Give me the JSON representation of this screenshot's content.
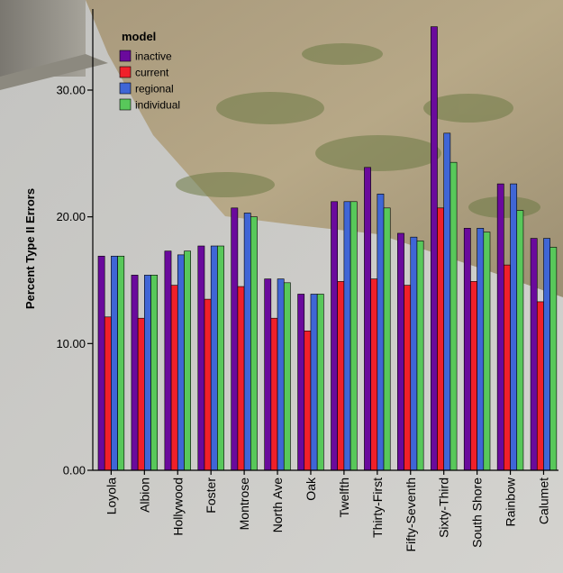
{
  "chart_data": {
    "type": "bar",
    "ylabel": "Percent Type II Errors",
    "xlabel": "",
    "ylim": [
      0,
      36
    ],
    "yticks": [
      "0.00",
      "10.00",
      "20.00",
      "30.00"
    ],
    "ytick_values": [
      0,
      10,
      20,
      30
    ],
    "grid": false,
    "legend": {
      "title": "model",
      "placement": "top-left"
    },
    "categories": [
      "Loyola",
      "Albion",
      "Hollywood",
      "Foster",
      "Montrose",
      "North Ave",
      "Oak",
      "Twelfth",
      "Thirty-First",
      "Fifty-Seventh",
      "Sixty-Third",
      "South Shore",
      "Rainbow",
      "Calumet"
    ],
    "series": [
      {
        "name": "inactive",
        "color": "#6a0a9c",
        "values": [
          16.9,
          15.4,
          17.3,
          17.7,
          20.7,
          15.1,
          13.9,
          21.2,
          23.9,
          18.7,
          35.0,
          19.1,
          22.6,
          18.3
        ]
      },
      {
        "name": "current",
        "color": "#f0202a",
        "values": [
          12.1,
          12.0,
          14.6,
          13.5,
          14.5,
          12.0,
          11.0,
          14.9,
          15.1,
          14.6,
          20.7,
          14.9,
          16.2,
          13.3
        ]
      },
      {
        "name": "regional",
        "color": "#3f66d6",
        "values": [
          16.9,
          15.4,
          17.0,
          17.7,
          20.3,
          15.1,
          13.9,
          21.2,
          21.8,
          18.4,
          26.6,
          19.1,
          22.6,
          18.3
        ]
      },
      {
        "name": "individual",
        "color": "#58c85a",
        "values": [
          16.9,
          15.4,
          17.3,
          17.7,
          20.0,
          14.8,
          13.9,
          21.2,
          20.7,
          18.1,
          24.3,
          18.8,
          20.5,
          17.6
        ]
      }
    ]
  }
}
